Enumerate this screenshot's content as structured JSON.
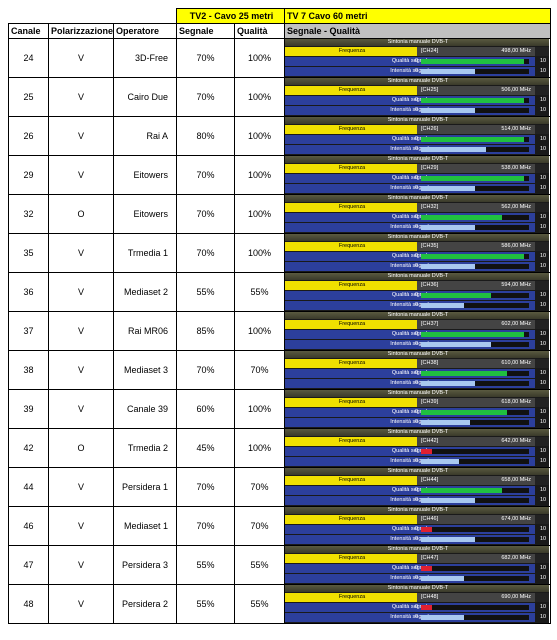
{
  "header": {
    "group_tv2": "TV2 - Cavo 25 metri",
    "group_tv7": "TV 7 Cavo 60 metri",
    "columns": [
      "Canale",
      "Polarizzazione",
      "Operatore",
      "Segnale",
      "Qualità",
      "Segnale - Qualità"
    ]
  },
  "tuner": {
    "title": "Sintonia manuale DVB-T",
    "frequency": "Frequenza",
    "quality": "Qualità segnale",
    "intensity": "Intensità segnale",
    "min": "0",
    "max": "10"
  },
  "table": {
    "rows": [
      {
        "channel": "24",
        "polarization": "V",
        "operator": "3D-Free",
        "signal": "70%",
        "quality": "100%",
        "ch": "[CH24]",
        "freq": "498,00 MHz",
        "q_bar": 9.5,
        "i_bar": 5
      },
      {
        "channel": "25",
        "polarization": "V",
        "operator": "Cairo Due",
        "signal": "70%",
        "quality": "100%",
        "ch": "[CH25]",
        "freq": "506,00 MHz",
        "q_bar": 9.5,
        "i_bar": 5
      },
      {
        "channel": "26",
        "polarization": "V",
        "operator": "Rai A",
        "signal": "80%",
        "quality": "100%",
        "ch": "[CH26]",
        "freq": "514,00 MHz",
        "q_bar": 9.5,
        "i_bar": 6
      },
      {
        "channel": "29",
        "polarization": "V",
        "operator": "Eitowers",
        "signal": "70%",
        "quality": "100%",
        "ch": "[CH29]",
        "freq": "538,00 MHz",
        "q_bar": 9.5,
        "i_bar": 5
      },
      {
        "channel": "32",
        "polarization": "O",
        "operator": "Eitowers",
        "signal": "70%",
        "quality": "100%",
        "ch": "[CH32]",
        "freq": "562,00 MHz",
        "q_bar": 7.5,
        "i_bar": 5
      },
      {
        "channel": "35",
        "polarization": "V",
        "operator": "Trmedia 1",
        "signal": "70%",
        "quality": "100%",
        "ch": "[CH35]",
        "freq": "586,00 MHz",
        "q_bar": 9.5,
        "i_bar": 5
      },
      {
        "channel": "36",
        "polarization": "V",
        "operator": "Mediaset 2",
        "signal": "55%",
        "quality": "55%",
        "ch": "[CH36]",
        "freq": "594,00 MHz",
        "q_bar": 6.5,
        "i_bar": 4
      },
      {
        "channel": "37",
        "polarization": "V",
        "operator": "Rai MR06",
        "signal": "85%",
        "quality": "100%",
        "ch": "[CH37]",
        "freq": "602,00 MHz",
        "q_bar": 9.5,
        "i_bar": 6.5
      },
      {
        "channel": "38",
        "polarization": "V",
        "operator": "Mediaset 3",
        "signal": "70%",
        "quality": "70%",
        "ch": "[CH38]",
        "freq": "610,00 MHz",
        "q_bar": 8,
        "i_bar": 5
      },
      {
        "channel": "39",
        "polarization": "V",
        "operator": "Canale 39",
        "signal": "60%",
        "quality": "100%",
        "ch": "[CH39]",
        "freq": "618,00 MHz",
        "q_bar": 8,
        "i_bar": 4.5
      },
      {
        "channel": "42",
        "polarization": "O",
        "operator": "Trmedia 2",
        "signal": "45%",
        "quality": "100%",
        "ch": "[CH42]",
        "freq": "642,00 MHz",
        "q_bar": 1,
        "i_bar": 3.5
      },
      {
        "channel": "44",
        "polarization": "V",
        "operator": "Persidera 1",
        "signal": "70%",
        "quality": "70%",
        "ch": "[CH44]",
        "freq": "658,00 MHz",
        "q_bar": 7.5,
        "i_bar": 5
      },
      {
        "channel": "46",
        "polarization": "V",
        "operator": "Mediaset 1",
        "signal": "70%",
        "quality": "70%",
        "ch": "[CH46]",
        "freq": "674,00 MHz",
        "q_bar": 1,
        "i_bar": 5
      },
      {
        "channel": "47",
        "polarization": "V",
        "operator": "Persidera 3",
        "signal": "55%",
        "quality": "55%",
        "ch": "[CH47]",
        "freq": "682,00 MHz",
        "q_bar": 1,
        "i_bar": 4
      },
      {
        "channel": "48",
        "polarization": "V",
        "operator": "Persidera 2",
        "signal": "55%",
        "quality": "55%",
        "ch": "[CH48]",
        "freq": "690,00 MHz",
        "q_bar": 1,
        "i_bar": 4
      }
    ]
  }
}
